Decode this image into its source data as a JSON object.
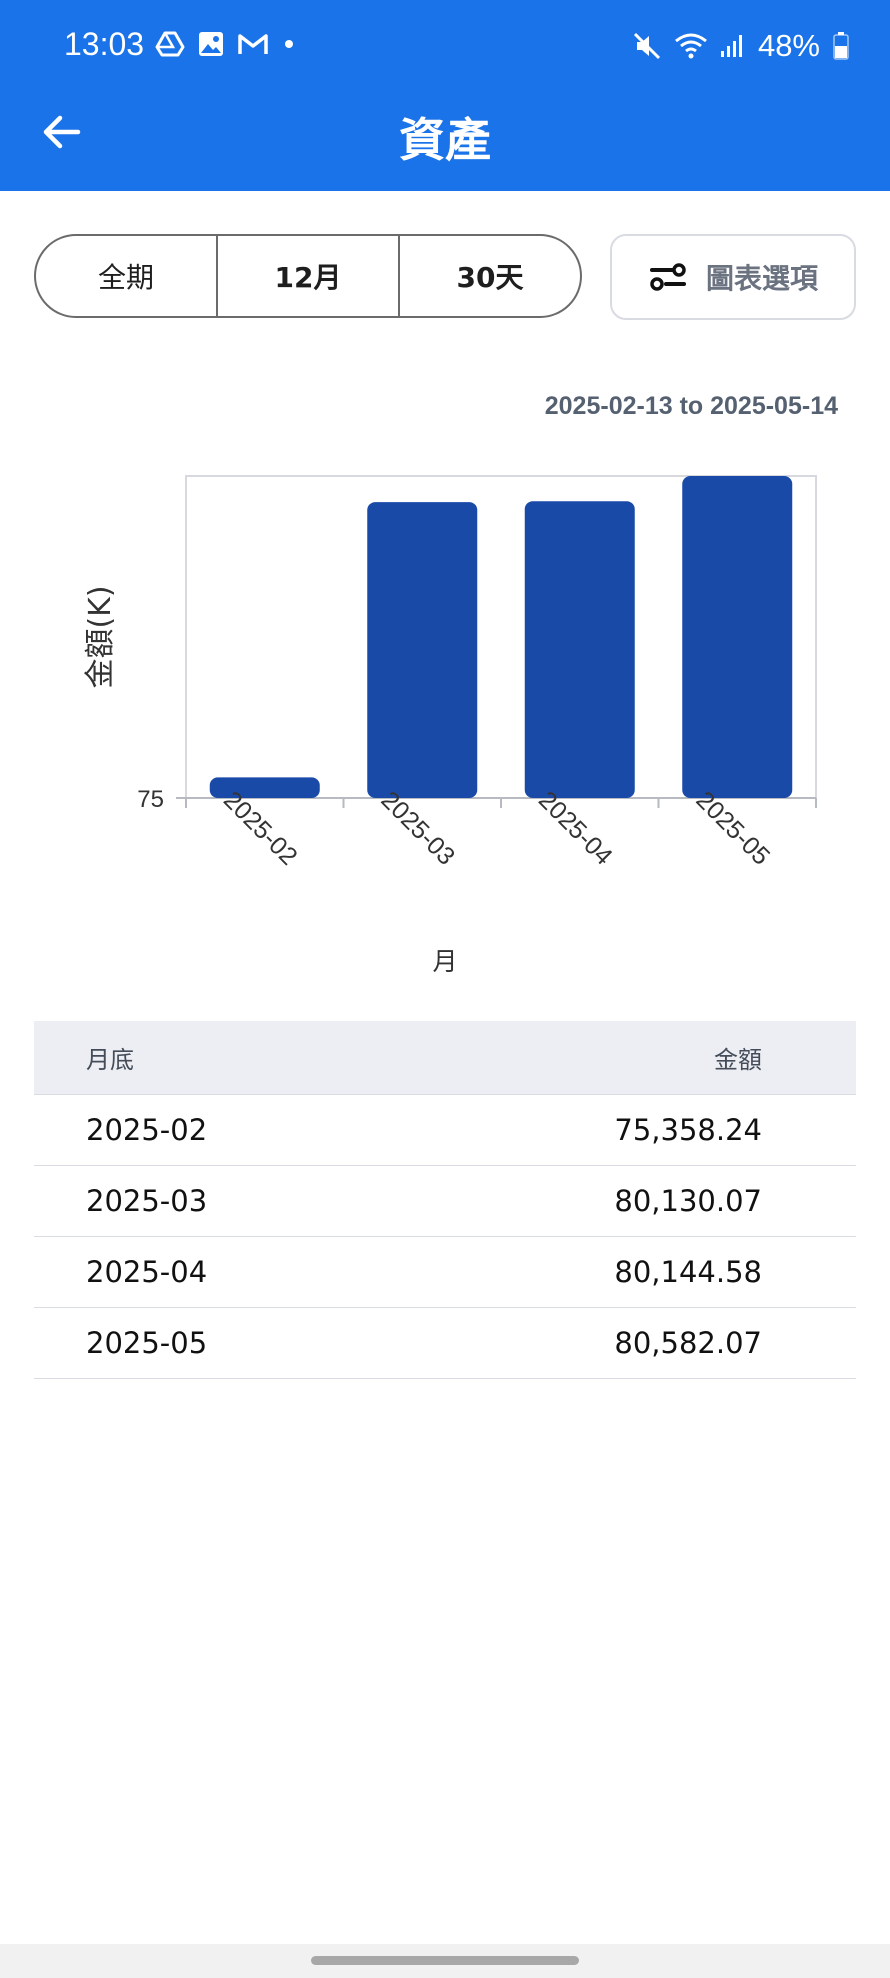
{
  "status_bar": {
    "time": "13:03",
    "battery": "48%",
    "icons_left": [
      "drive-icon",
      "image-icon",
      "gmail-icon",
      "dot-icon"
    ],
    "icons_right": [
      "mute-icon",
      "wifi-icon",
      "signal-icon",
      "battery-icon"
    ]
  },
  "app_bar": {
    "title": "資產",
    "back_icon": "arrow-left-icon"
  },
  "period_selector": {
    "options": [
      "全期",
      "12月",
      "30天"
    ]
  },
  "chart_options_button": {
    "label": "圖表選項",
    "icon": "sliders-icon"
  },
  "date_range": "2025-02-13 to 2025-05-14",
  "colors": {
    "primary": "#1a73e8",
    "bar": "#1a4aa8"
  },
  "chart_data": {
    "type": "bar",
    "categories": [
      "2025-02",
      "2025-03",
      "2025-04",
      "2025-05"
    ],
    "values": [
      75.358,
      80.13,
      80.145,
      80.582
    ],
    "ylabel": "金額(K)",
    "xlabel": "月",
    "ytick_labels": [
      "75"
    ],
    "ylim": [
      75,
      80.582
    ]
  },
  "table": {
    "headers": [
      "月底",
      "金額"
    ],
    "rows": [
      [
        "2025-02",
        "75,358.24"
      ],
      [
        "2025-03",
        "80,130.07"
      ],
      [
        "2025-04",
        "80,144.58"
      ],
      [
        "2025-05",
        "80,582.07"
      ]
    ]
  }
}
